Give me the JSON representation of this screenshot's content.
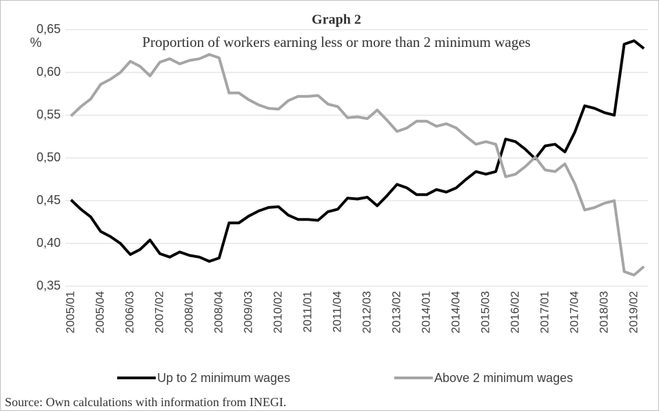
{
  "chart_data": {
    "type": "line",
    "title": "Graph 2",
    "subtitle": "Proportion of workers earning less or more than 2 minimum wages",
    "y_label": "%",
    "source": "Source: Own calculations with information from INEGI.",
    "categories": [
      "2005/01",
      null,
      null,
      "2005/04",
      null,
      null,
      "2006/03",
      null,
      null,
      "2007/02",
      null,
      null,
      "2008/01",
      null,
      null,
      "2008/04",
      null,
      null,
      "2009/03",
      null,
      null,
      "2010/02",
      null,
      null,
      "2011/01",
      null,
      null,
      "2011/04",
      null,
      null,
      "2012/03",
      null,
      null,
      "2013/02",
      null,
      null,
      "2014/01",
      null,
      null,
      "2014/04",
      null,
      null,
      "2015/03",
      null,
      null,
      "2016/02",
      null,
      null,
      "2017/01",
      null,
      null,
      "2017/04",
      null,
      null,
      "2018/03",
      null,
      null,
      "2019/02",
      null
    ],
    "series": [
      {
        "name": "Up to 2 minimum wages",
        "color": "#000000",
        "values": [
          0.451,
          0.44,
          0.431,
          0.414,
          0.408,
          0.4,
          0.387,
          0.393,
          0.404,
          0.388,
          0.384,
          0.39,
          0.386,
          0.384,
          0.379,
          0.383,
          0.424,
          0.424,
          0.432,
          0.438,
          0.442,
          0.443,
          0.433,
          0.428,
          0.428,
          0.427,
          0.437,
          0.44,
          0.453,
          0.452,
          0.454,
          0.444,
          0.456,
          0.469,
          0.465,
          0.457,
          0.457,
          0.463,
          0.46,
          0.465,
          0.475,
          0.484,
          0.481,
          0.484,
          0.522,
          0.519,
          0.51,
          0.499,
          0.514,
          0.516,
          0.507,
          0.53,
          0.561,
          0.558,
          0.553,
          0.55,
          0.633,
          0.637,
          0.628
        ]
      },
      {
        "name": "Above 2 minimum wages",
        "color": "#a5a5a5",
        "values": [
          0.549,
          0.56,
          0.569,
          0.586,
          0.592,
          0.6,
          0.613,
          0.607,
          0.596,
          0.612,
          0.616,
          0.61,
          0.614,
          0.616,
          0.621,
          0.617,
          0.576,
          0.576,
          0.568,
          0.562,
          0.558,
          0.557,
          0.567,
          0.572,
          0.572,
          0.573,
          0.563,
          0.56,
          0.547,
          0.548,
          0.546,
          0.556,
          0.544,
          0.531,
          0.535,
          0.543,
          0.543,
          0.537,
          0.54,
          0.535,
          0.525,
          0.516,
          0.519,
          0.516,
          0.478,
          0.481,
          0.49,
          0.501,
          0.486,
          0.484,
          0.493,
          0.47,
          0.439,
          0.442,
          0.447,
          0.45,
          0.367,
          0.363,
          0.373
        ]
      }
    ],
    "ylim": [
      0.35,
      0.65
    ],
    "yticks": [
      {
        "value": 0.35,
        "label": "0,35"
      },
      {
        "value": 0.4,
        "label": "0,40"
      },
      {
        "value": 0.45,
        "label": "0,45"
      },
      {
        "value": 0.5,
        "label": "0,50"
      },
      {
        "value": 0.55,
        "label": "0,55"
      },
      {
        "value": 0.6,
        "label": "0,60"
      },
      {
        "value": 0.65,
        "label": "0,65"
      }
    ],
    "grid": true,
    "legend": "bottom"
  }
}
